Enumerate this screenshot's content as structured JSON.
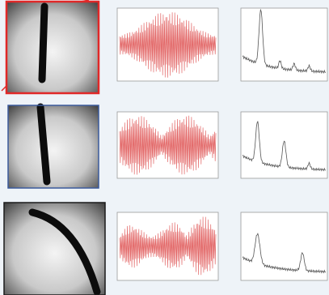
{
  "panels": [
    {
      "frame_color": "#e02828"
    },
    {
      "frame_color": "#3b5b9c"
    },
    {
      "frame_color": "#1a1a1a"
    }
  ]
}
